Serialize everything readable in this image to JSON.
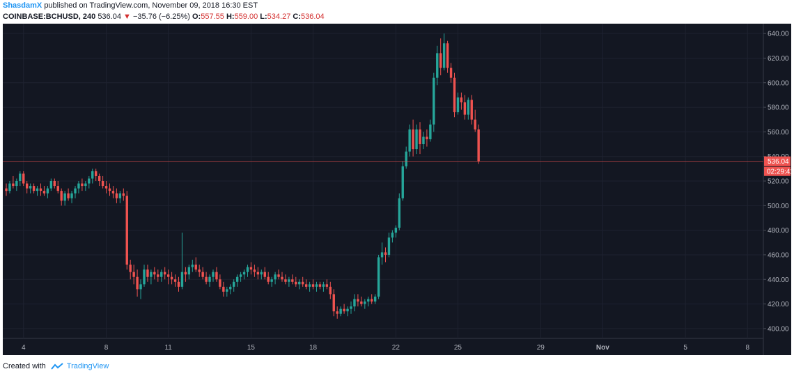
{
  "header": {
    "author": "ShasdamX",
    "published_text": "published on TradingView.com, November 09, 2018 16:30 EST"
  },
  "ticker": {
    "symbol": "COINBASE:BCHUSD, 240",
    "last": "536.04",
    "change": "−35.76 (−6.25%)",
    "open_label": "O:",
    "open": "557.55",
    "high_label": "H:",
    "high": "559.00",
    "low_label": "L:",
    "low": "534.27",
    "close_label": "C:",
    "close": "536.04"
  },
  "footer": {
    "created_with": "Created with",
    "brand": "TradingView"
  },
  "colors": {
    "background": "#131722",
    "grid": "#1e2230",
    "up": "#26a69a",
    "down": "#ef5350",
    "axis_text": "#b2b5be",
    "price_line": "#ef5350"
  },
  "chart_data": {
    "type": "candlestick",
    "symbol": "COINBASE:BCHUSD",
    "interval": "240",
    "ylim": [
      392,
      648
    ],
    "y_ticks": [
      400,
      420,
      440,
      460,
      480,
      500,
      520,
      540,
      560,
      580,
      600,
      620,
      640
    ],
    "x_ticks": [
      {
        "label": "4",
        "bar": 5
      },
      {
        "label": "8",
        "bar": 29
      },
      {
        "label": "11",
        "bar": 47
      },
      {
        "label": "15",
        "bar": 71
      },
      {
        "label": "18",
        "bar": 89
      },
      {
        "label": "22",
        "bar": 113
      },
      {
        "label": "25",
        "bar": 131
      },
      {
        "label": "29",
        "bar": 155
      },
      {
        "label": "Nov",
        "bar": 173
      },
      {
        "label": "5",
        "bar": 197
      },
      {
        "label": "8",
        "bar": 215
      }
    ],
    "last_price": 536.04,
    "countdown": "02:29:41",
    "grid": true,
    "bars": [
      [
        514,
        518,
        508,
        512
      ],
      [
        512,
        520,
        510,
        518
      ],
      [
        518,
        524,
        514,
        516
      ],
      [
        516,
        522,
        512,
        520
      ],
      [
        520,
        528,
        516,
        526
      ],
      [
        526,
        528,
        516,
        518
      ],
      [
        518,
        520,
        510,
        514
      ],
      [
        514,
        518,
        510,
        516
      ],
      [
        516,
        518,
        510,
        512
      ],
      [
        512,
        516,
        508,
        514
      ],
      [
        514,
        518,
        508,
        512
      ],
      [
        512,
        516,
        508,
        510
      ],
      [
        510,
        516,
        506,
        514
      ],
      [
        514,
        522,
        512,
        520
      ],
      [
        520,
        522,
        514,
        516
      ],
      [
        516,
        520,
        510,
        512
      ],
      [
        512,
        514,
        500,
        504
      ],
      [
        504,
        512,
        500,
        510
      ],
      [
        510,
        514,
        504,
        506
      ],
      [
        506,
        512,
        502,
        510
      ],
      [
        510,
        516,
        506,
        514
      ],
      [
        514,
        520,
        510,
        518
      ],
      [
        518,
        522,
        512,
        516
      ],
      [
        516,
        520,
        512,
        518
      ],
      [
        518,
        524,
        514,
        522
      ],
      [
        522,
        530,
        518,
        528
      ],
      [
        528,
        530,
        520,
        524
      ],
      [
        524,
        526,
        516,
        520
      ],
      [
        520,
        524,
        514,
        516
      ],
      [
        516,
        520,
        510,
        514
      ],
      [
        514,
        518,
        508,
        512
      ],
      [
        512,
        516,
        506,
        510
      ],
      [
        510,
        514,
        502,
        506
      ],
      [
        506,
        512,
        502,
        510
      ],
      [
        510,
        514,
        504,
        508
      ],
      [
        508,
        512,
        448,
        452
      ],
      [
        452,
        456,
        440,
        446
      ],
      [
        446,
        452,
        436,
        442
      ],
      [
        442,
        448,
        426,
        432
      ],
      [
        432,
        440,
        424,
        436
      ],
      [
        436,
        452,
        434,
        448
      ],
      [
        448,
        452,
        438,
        442
      ],
      [
        442,
        448,
        436,
        446
      ],
      [
        446,
        450,
        440,
        444
      ],
      [
        444,
        448,
        438,
        442
      ],
      [
        442,
        448,
        438,
        446
      ],
      [
        446,
        450,
        440,
        444
      ],
      [
        444,
        448,
        436,
        442
      ],
      [
        442,
        446,
        436,
        440
      ],
      [
        440,
        444,
        434,
        438
      ],
      [
        438,
        442,
        430,
        434
      ],
      [
        434,
        478,
        432,
        446
      ],
      [
        446,
        450,
        438,
        444
      ],
      [
        444,
        452,
        440,
        450
      ],
      [
        450,
        456,
        446,
        452
      ],
      [
        452,
        458,
        446,
        448
      ],
      [
        448,
        452,
        442,
        446
      ],
      [
        446,
        450,
        440,
        442
      ],
      [
        442,
        446,
        436,
        438
      ],
      [
        438,
        444,
        434,
        442
      ],
      [
        442,
        448,
        438,
        446
      ],
      [
        446,
        450,
        438,
        440
      ],
      [
        440,
        444,
        432,
        434
      ],
      [
        434,
        438,
        426,
        430
      ],
      [
        430,
        434,
        426,
        432
      ],
      [
        432,
        436,
        428,
        434
      ],
      [
        434,
        440,
        430,
        438
      ],
      [
        438,
        444,
        434,
        442
      ],
      [
        442,
        446,
        438,
        444
      ],
      [
        444,
        448,
        440,
        446
      ],
      [
        446,
        452,
        442,
        450
      ],
      [
        450,
        454,
        444,
        448
      ],
      [
        448,
        452,
        442,
        446
      ],
      [
        446,
        450,
        440,
        444
      ],
      [
        444,
        448,
        440,
        446
      ],
      [
        446,
        450,
        440,
        442
      ],
      [
        442,
        446,
        436,
        438
      ],
      [
        438,
        442,
        434,
        440
      ],
      [
        440,
        446,
        436,
        444
      ],
      [
        444,
        448,
        440,
        442
      ],
      [
        442,
        446,
        438,
        440
      ],
      [
        440,
        444,
        436,
        438
      ],
      [
        438,
        442,
        434,
        440
      ],
      [
        440,
        444,
        436,
        438
      ],
      [
        438,
        442,
        434,
        436
      ],
      [
        436,
        440,
        432,
        438
      ],
      [
        438,
        442,
        434,
        436
      ],
      [
        436,
        440,
        432,
        434
      ],
      [
        434,
        438,
        430,
        436
      ],
      [
        436,
        440,
        432,
        434
      ],
      [
        434,
        438,
        430,
        436
      ],
      [
        436,
        438,
        432,
        434
      ],
      [
        434,
        438,
        430,
        436
      ],
      [
        436,
        440,
        432,
        434
      ],
      [
        434,
        438,
        424,
        428
      ],
      [
        428,
        432,
        410,
        414
      ],
      [
        414,
        418,
        408,
        412
      ],
      [
        412,
        418,
        410,
        416
      ],
      [
        416,
        420,
        412,
        414
      ],
      [
        414,
        418,
        410,
        416
      ],
      [
        416,
        422,
        412,
        418
      ],
      [
        418,
        428,
        414,
        424
      ],
      [
        424,
        428,
        418,
        422
      ],
      [
        422,
        426,
        418,
        420
      ],
      [
        420,
        424,
        416,
        422
      ],
      [
        422,
        426,
        418,
        424
      ],
      [
        424,
        428,
        420,
        422
      ],
      [
        422,
        428,
        420,
        426
      ],
      [
        426,
        460,
        424,
        458
      ],
      [
        458,
        470,
        452,
        462
      ],
      [
        462,
        466,
        454,
        460
      ],
      [
        460,
        478,
        458,
        474
      ],
      [
        474,
        480,
        470,
        478
      ],
      [
        478,
        484,
        474,
        482
      ],
      [
        482,
        510,
        480,
        506
      ],
      [
        506,
        536,
        504,
        532
      ],
      [
        532,
        548,
        530,
        544
      ],
      [
        544,
        566,
        540,
        562
      ],
      [
        562,
        570,
        540,
        546
      ],
      [
        546,
        566,
        542,
        562
      ],
      [
        562,
        568,
        542,
        550
      ],
      [
        550,
        560,
        546,
        556
      ],
      [
        556,
        562,
        548,
        554
      ],
      [
        554,
        570,
        552,
        566
      ],
      [
        566,
        608,
        560,
        604
      ],
      [
        604,
        630,
        598,
        624
      ],
      [
        624,
        636,
        606,
        612
      ],
      [
        612,
        640,
        610,
        632
      ],
      [
        632,
        634,
        608,
        612
      ],
      [
        612,
        616,
        600,
        604
      ],
      [
        604,
        608,
        572,
        576
      ],
      [
        576,
        592,
        574,
        588
      ],
      [
        588,
        592,
        578,
        584
      ],
      [
        584,
        590,
        570,
        574
      ],
      [
        574,
        588,
        570,
        586
      ],
      [
        586,
        590,
        566,
        570
      ],
      [
        570,
        578,
        560,
        562
      ],
      [
        562,
        566,
        534,
        536
      ]
    ]
  }
}
